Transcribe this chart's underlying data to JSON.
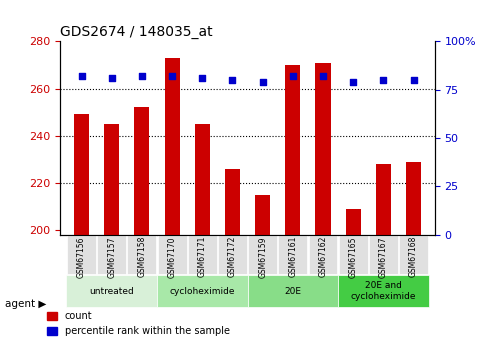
{
  "title": "GDS2674 / 148035_at",
  "samples": [
    "GSM67156",
    "GSM67157",
    "GSM67158",
    "GSM67170",
    "GSM67171",
    "GSM67172",
    "GSM67159",
    "GSM67161",
    "GSM67162",
    "GSM67165",
    "GSM67167",
    "GSM67168"
  ],
  "counts": [
    249,
    245,
    252,
    273,
    245,
    226,
    215,
    270,
    271,
    209,
    228,
    229
  ],
  "percentile_ranks": [
    82,
    81,
    82,
    82,
    81,
    80,
    79,
    82,
    82,
    79,
    80,
    80
  ],
  "ymin": 198,
  "ymax": 280,
  "yticks": [
    200,
    220,
    240,
    260,
    280
  ],
  "y2min": 0,
  "y2max": 100,
  "y2ticks": [
    0,
    25,
    50,
    75,
    100
  ],
  "bar_color": "#cc0000",
  "dot_color": "#0000cc",
  "bar_bottom": 198,
  "groups": [
    {
      "label": "untreated",
      "start": 0,
      "end": 3,
      "color": "#d8f0d8"
    },
    {
      "label": "cycloheximide",
      "start": 3,
      "end": 6,
      "color": "#a8e8a8"
    },
    {
      "label": "20E",
      "start": 6,
      "end": 9,
      "color": "#88dd88"
    },
    {
      "label": "20E and\ncycloheximide",
      "start": 9,
      "end": 12,
      "color": "#44cc44"
    }
  ],
  "agent_label": "agent",
  "legend_count_label": "count",
  "legend_percentile_label": "percentile rank within the sample",
  "background_color": "#ffffff",
  "plot_bg_color": "#ffffff",
  "tick_label_color_left": "#cc0000",
  "tick_label_color_right": "#0000cc",
  "grid_color": "#000000"
}
